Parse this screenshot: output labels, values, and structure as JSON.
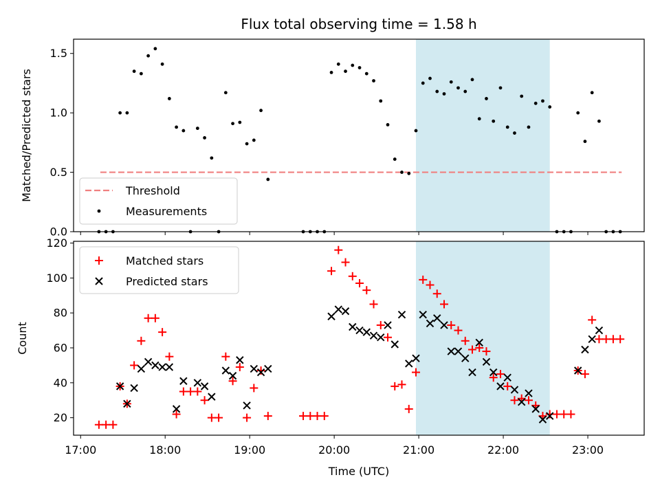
{
  "title": "Flux total observing time = 1.58 h",
  "colors": {
    "measurement": "#000000",
    "threshold": "#f08080",
    "matched": "#ff0000",
    "predicted": "#000000",
    "shade": "#add8e6"
  },
  "chart_data": [
    {
      "type": "scatter",
      "panel": "top",
      "xlabel": "",
      "ylabel": "Matched/Predicted stars",
      "xlim": [
        "16:55",
        "23:40"
      ],
      "ylim": [
        0,
        1.62
      ],
      "xticks": [
        "17:00",
        "18:00",
        "19:00",
        "20:00",
        "21:00",
        "22:00",
        "23:00"
      ],
      "yticks": [
        "0.0",
        "0.5",
        "1.0",
        "1.5"
      ],
      "legend_position": "lower-left",
      "highlight_span": [
        "20:58",
        "22:33"
      ],
      "threshold": {
        "name": "Threshold",
        "y": 0.5,
        "x": [
          "17:14",
          "23:24"
        ]
      },
      "series": [
        {
          "name": "Measurements",
          "points": [
            [
              "17:13",
              0
            ],
            [
              "17:18",
              0
            ],
            [
              "17:23",
              0
            ],
            [
              "17:28",
              1.0
            ],
            [
              "17:33",
              1.0
            ],
            [
              "17:38",
              1.35
            ],
            [
              "17:43",
              1.33
            ],
            [
              "17:48",
              1.48
            ],
            [
              "17:53",
              1.54
            ],
            [
              "17:58",
              1.41
            ],
            [
              "18:03",
              1.12
            ],
            [
              "18:08",
              0.88
            ],
            [
              "18:13",
              0.85
            ],
            [
              "18:18",
              0
            ],
            [
              "18:23",
              0.87
            ],
            [
              "18:28",
              0.79
            ],
            [
              "18:33",
              0.62
            ],
            [
              "18:38",
              0
            ],
            [
              "18:43",
              1.17
            ],
            [
              "18:48",
              0.91
            ],
            [
              "18:53",
              0.92
            ],
            [
              "18:58",
              0.74
            ],
            [
              "19:03",
              0.77
            ],
            [
              "19:08",
              1.02
            ],
            [
              "19:13",
              0.44
            ],
            [
              "19:38",
              0
            ],
            [
              "19:43",
              0
            ],
            [
              "19:48",
              0
            ],
            [
              "19:53",
              0
            ],
            [
              "19:58",
              1.34
            ],
            [
              "20:03",
              1.41
            ],
            [
              "20:08",
              1.35
            ],
            [
              "20:13",
              1.4
            ],
            [
              "20:18",
              1.38
            ],
            [
              "20:23",
              1.33
            ],
            [
              "20:28",
              1.27
            ],
            [
              "20:33",
              1.1
            ],
            [
              "20:38",
              0.9
            ],
            [
              "20:43",
              0.61
            ],
            [
              "20:48",
              0.5
            ],
            [
              "20:53",
              0.49
            ],
            [
              "20:58",
              0.85
            ],
            [
              "21:03",
              1.25
            ],
            [
              "21:08",
              1.29
            ],
            [
              "21:13",
              1.18
            ],
            [
              "21:18",
              1.16
            ],
            [
              "21:23",
              1.26
            ],
            [
              "21:28",
              1.21
            ],
            [
              "21:33",
              1.18
            ],
            [
              "21:38",
              1.28
            ],
            [
              "21:43",
              0.95
            ],
            [
              "21:48",
              1.12
            ],
            [
              "21:53",
              0.93
            ],
            [
              "21:58",
              1.21
            ],
            [
              "22:03",
              0.88
            ],
            [
              "22:08",
              0.83
            ],
            [
              "22:13",
              1.14
            ],
            [
              "22:18",
              0.88
            ],
            [
              "22:23",
              1.08
            ],
            [
              "22:28",
              1.1
            ],
            [
              "22:33",
              1.05
            ],
            [
              "22:38",
              0
            ],
            [
              "22:43",
              0
            ],
            [
              "22:48",
              0
            ],
            [
              "22:53",
              1.0
            ],
            [
              "22:58",
              0.76
            ],
            [
              "23:03",
              1.17
            ],
            [
              "23:08",
              0.93
            ],
            [
              "23:13",
              0
            ],
            [
              "23:18",
              0
            ],
            [
              "23:23",
              0
            ]
          ]
        }
      ]
    },
    {
      "type": "scatter",
      "panel": "bottom",
      "xlabel": "Time (UTC)",
      "ylabel": "Count",
      "xlim": [
        "16:55",
        "23:40"
      ],
      "ylim": [
        10,
        121
      ],
      "xticks": [
        "17:00",
        "18:00",
        "19:00",
        "20:00",
        "21:00",
        "22:00",
        "23:00"
      ],
      "yticks": [
        "20",
        "40",
        "60",
        "80",
        "100",
        "120"
      ],
      "legend_position": "upper-left",
      "highlight_span": [
        "20:58",
        "22:33"
      ],
      "series": [
        {
          "name": "Matched stars",
          "marker": "plus",
          "points": [
            [
              "17:13",
              16
            ],
            [
              "17:18",
              16
            ],
            [
              "17:23",
              16
            ],
            [
              "17:28",
              38
            ],
            [
              "17:33",
              28
            ],
            [
              "17:38",
              50
            ],
            [
              "17:43",
              64
            ],
            [
              "17:48",
              77
            ],
            [
              "17:53",
              77
            ],
            [
              "17:58",
              69
            ],
            [
              "18:03",
              55
            ],
            [
              "18:08",
              22
            ],
            [
              "18:13",
              35
            ],
            [
              "18:18",
              35
            ],
            [
              "18:23",
              35
            ],
            [
              "18:28",
              30
            ],
            [
              "18:33",
              20
            ],
            [
              "18:38",
              20
            ],
            [
              "18:43",
              55
            ],
            [
              "18:48",
              41
            ],
            [
              "18:53",
              49
            ],
            [
              "18:58",
              20
            ],
            [
              "19:03",
              37
            ],
            [
              "19:08",
              47
            ],
            [
              "19:13",
              21
            ],
            [
              "19:38",
              21
            ],
            [
              "19:43",
              21
            ],
            [
              "19:48",
              21
            ],
            [
              "19:53",
              21
            ],
            [
              "19:58",
              104
            ],
            [
              "20:03",
              116
            ],
            [
              "20:08",
              109
            ],
            [
              "20:13",
              101
            ],
            [
              "20:18",
              97
            ],
            [
              "20:23",
              93
            ],
            [
              "20:28",
              85
            ],
            [
              "20:33",
              73
            ],
            [
              "20:38",
              66
            ],
            [
              "20:43",
              38
            ],
            [
              "20:48",
              39
            ],
            [
              "20:53",
              25
            ],
            [
              "20:58",
              46
            ],
            [
              "21:03",
              99
            ],
            [
              "21:08",
              96
            ],
            [
              "21:13",
              91
            ],
            [
              "21:18",
              85
            ],
            [
              "21:23",
              73
            ],
            [
              "21:28",
              70
            ],
            [
              "21:33",
              64
            ],
            [
              "21:38",
              59
            ],
            [
              "21:43",
              60
            ],
            [
              "21:48",
              58
            ],
            [
              "21:53",
              43
            ],
            [
              "21:58",
              45
            ],
            [
              "22:03",
              38
            ],
            [
              "22:08",
              30
            ],
            [
              "22:13",
              31
            ],
            [
              "22:18",
              30
            ],
            [
              "22:23",
              27
            ],
            [
              "22:28",
              21
            ],
            [
              "22:33",
              22
            ],
            [
              "22:38",
              22
            ],
            [
              "22:43",
              22
            ],
            [
              "22:48",
              22
            ],
            [
              "22:53",
              47
            ],
            [
              "22:58",
              45
            ],
            [
              "23:03",
              76
            ],
            [
              "23:08",
              65
            ],
            [
              "23:13",
              65
            ],
            [
              "23:18",
              65
            ],
            [
              "23:23",
              65
            ]
          ]
        },
        {
          "name": "Predicted stars",
          "marker": "x",
          "points": [
            [
              "17:28",
              38
            ],
            [
              "17:33",
              28
            ],
            [
              "17:38",
              37
            ],
            [
              "17:43",
              48
            ],
            [
              "17:48",
              52
            ],
            [
              "17:53",
              50
            ],
            [
              "17:58",
              49
            ],
            [
              "18:03",
              49
            ],
            [
              "18:08",
              25
            ],
            [
              "18:13",
              41
            ],
            [
              "18:23",
              40
            ],
            [
              "18:28",
              38
            ],
            [
              "18:33",
              32
            ],
            [
              "18:43",
              47
            ],
            [
              "18:48",
              44
            ],
            [
              "18:53",
              53
            ],
            [
              "18:58",
              27
            ],
            [
              "19:03",
              48
            ],
            [
              "19:08",
              46
            ],
            [
              "19:13",
              48
            ],
            [
              "19:58",
              78
            ],
            [
              "20:03",
              82
            ],
            [
              "20:08",
              81
            ],
            [
              "20:13",
              72
            ],
            [
              "20:18",
              70
            ],
            [
              "20:23",
              69
            ],
            [
              "20:28",
              67
            ],
            [
              "20:33",
              66
            ],
            [
              "20:38",
              73
            ],
            [
              "20:43",
              62
            ],
            [
              "20:48",
              79
            ],
            [
              "20:53",
              51
            ],
            [
              "20:58",
              54
            ],
            [
              "21:03",
              79
            ],
            [
              "21:08",
              74
            ],
            [
              "21:13",
              77
            ],
            [
              "21:18",
              73
            ],
            [
              "21:23",
              58
            ],
            [
              "21:28",
              58
            ],
            [
              "21:33",
              54
            ],
            [
              "21:38",
              46
            ],
            [
              "21:43",
              63
            ],
            [
              "21:48",
              52
            ],
            [
              "21:53",
              46
            ],
            [
              "21:58",
              38
            ],
            [
              "22:03",
              43
            ],
            [
              "22:08",
              36
            ],
            [
              "22:13",
              29
            ],
            [
              "22:18",
              34
            ],
            [
              "22:23",
              25
            ],
            [
              "22:28",
              19
            ],
            [
              "22:33",
              21
            ],
            [
              "22:53",
              47
            ],
            [
              "22:58",
              59
            ],
            [
              "23:03",
              65
            ],
            [
              "23:08",
              70
            ]
          ]
        }
      ]
    }
  ]
}
